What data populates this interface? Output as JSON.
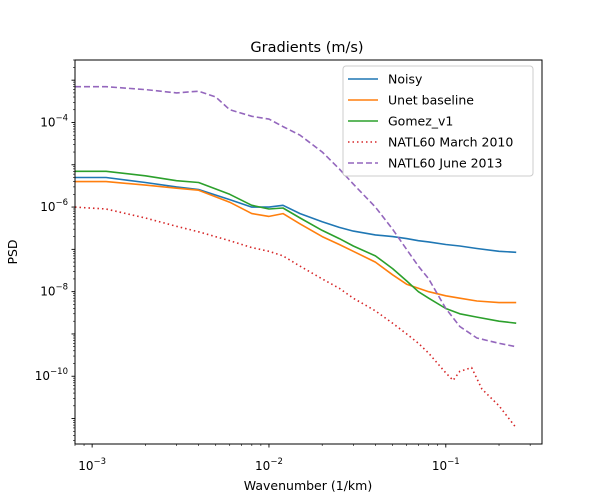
{
  "chart_data": {
    "type": "line",
    "title": "Gradients (m/s)",
    "xlabel": "Wavenumber (1/km)",
    "ylabel": "PSD",
    "xscale": "log",
    "yscale": "log",
    "xlim": [
      0.0008,
      0.35
    ],
    "ylim": [
      2.5e-12,
      0.003
    ],
    "xticks": [
      {
        "value": 0.001,
        "base": "10",
        "exp": "−3"
      },
      {
        "value": 0.01,
        "base": "10",
        "exp": "−2"
      },
      {
        "value": 0.1,
        "base": "10",
        "exp": "−1"
      }
    ],
    "yticks": [
      {
        "value": 1e-10,
        "base": "10",
        "exp": "−10"
      },
      {
        "value": 1e-08,
        "base": "10",
        "exp": "−8"
      },
      {
        "value": 1e-06,
        "base": "10",
        "exp": "−6"
      },
      {
        "value": 0.0001,
        "base": "10",
        "exp": "−4"
      }
    ],
    "grid": false,
    "legend_position": "upper right",
    "series": [
      {
        "name": "Noisy",
        "color": "#1f77b4",
        "style": "solid",
        "x": [
          0.0008,
          0.0012,
          0.002,
          0.003,
          0.004,
          0.006,
          0.008,
          0.01,
          0.012,
          0.015,
          0.02,
          0.025,
          0.03,
          0.04,
          0.05,
          0.06,
          0.07,
          0.08,
          0.1,
          0.12,
          0.15,
          0.2,
          0.25
        ],
        "y": [
          5e-06,
          5e-06,
          3.8e-06,
          3e-06,
          2.6e-06,
          1.5e-06,
          1e-06,
          1e-06,
          1.1e-06,
          7e-07,
          4.5e-07,
          3.3e-07,
          2.7e-07,
          2.2e-07,
          2e-07,
          1.8e-07,
          1.6e-07,
          1.5e-07,
          1.3e-07,
          1.2e-07,
          1.05e-07,
          9e-08,
          8.5e-08
        ]
      },
      {
        "name": "Unet baseline",
        "color": "#ff7f0e",
        "style": "solid",
        "x": [
          0.0008,
          0.0012,
          0.002,
          0.003,
          0.004,
          0.006,
          0.008,
          0.01,
          0.012,
          0.015,
          0.02,
          0.025,
          0.03,
          0.04,
          0.05,
          0.06,
          0.07,
          0.08,
          0.1,
          0.12,
          0.15,
          0.2,
          0.25
        ],
        "y": [
          4e-06,
          4e-06,
          3.3e-06,
          2.8e-06,
          2.5e-06,
          1.3e-06,
          7e-07,
          6e-07,
          7e-07,
          4e-07,
          2e-07,
          1.3e-07,
          9e-08,
          5e-08,
          2.5e-08,
          1.5e-08,
          1.2e-08,
          1e-08,
          8e-09,
          7e-09,
          6e-09,
          5.5e-09,
          5.5e-09
        ]
      },
      {
        "name": "Gomez_v1",
        "color": "#2ca02c",
        "style": "solid",
        "x": [
          0.0008,
          0.0012,
          0.002,
          0.003,
          0.004,
          0.006,
          0.008,
          0.01,
          0.012,
          0.015,
          0.02,
          0.025,
          0.03,
          0.04,
          0.05,
          0.06,
          0.07,
          0.08,
          0.1,
          0.12,
          0.15,
          0.2,
          0.25
        ],
        "y": [
          7e-06,
          7e-06,
          5.5e-06,
          4.2e-06,
          3.8e-06,
          2e-06,
          1.1e-06,
          9e-07,
          9.5e-07,
          5.5e-07,
          2.8e-07,
          1.8e-07,
          1.2e-07,
          7e-08,
          3.5e-08,
          1.8e-08,
          1e-08,
          7e-09,
          4e-09,
          3e-09,
          2.5e-09,
          2e-09,
          1.8e-09
        ]
      },
      {
        "name": "NATL60 March 2010",
        "color": "#d62728",
        "style": "dotted",
        "x": [
          0.0008,
          0.0012,
          0.002,
          0.003,
          0.004,
          0.006,
          0.008,
          0.01,
          0.012,
          0.015,
          0.02,
          0.025,
          0.03,
          0.04,
          0.05,
          0.06,
          0.07,
          0.08,
          0.1,
          0.11,
          0.12,
          0.14,
          0.16,
          0.2,
          0.25
        ],
        "y": [
          1e-06,
          9e-07,
          5.5e-07,
          3.5e-07,
          2.6e-07,
          1.6e-07,
          1.1e-07,
          9e-08,
          7e-08,
          4e-08,
          2e-08,
          1.2e-08,
          7e-09,
          3.5e-09,
          1.8e-09,
          1e-09,
          6e-10,
          3.5e-10,
          1.2e-10,
          8e-11,
          1.3e-10,
          1.6e-10,
          5e-11,
          2e-11,
          6e-12
        ]
      },
      {
        "name": "NATL60 June 2013",
        "color": "#9467bd",
        "style": "dashed",
        "x": [
          0.0008,
          0.0012,
          0.002,
          0.003,
          0.004,
          0.005,
          0.006,
          0.008,
          0.01,
          0.012,
          0.015,
          0.02,
          0.025,
          0.03,
          0.04,
          0.05,
          0.06,
          0.07,
          0.08,
          0.1,
          0.12,
          0.15,
          0.2,
          0.25
        ],
        "y": [
          0.0007,
          0.0007,
          0.0006,
          0.0005,
          0.00055,
          0.0004,
          0.0002,
          0.00014,
          0.00012,
          8e-05,
          5e-05,
          2e-05,
          8e-06,
          3.5e-06,
          1e-06,
          3e-07,
          1e-07,
          4e-08,
          2e-08,
          4e-09,
          1.5e-09,
          8e-10,
          6e-10,
          5e-10
        ]
      }
    ]
  }
}
